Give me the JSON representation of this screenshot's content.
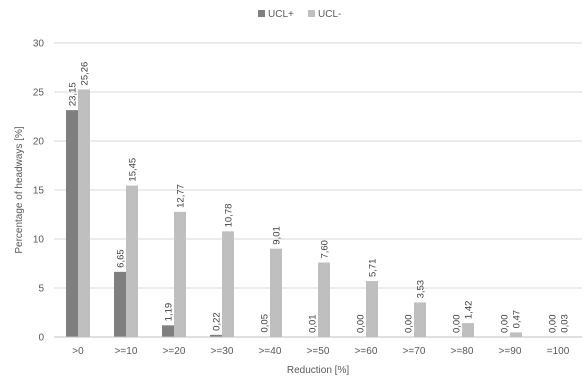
{
  "chart_data": {
    "type": "bar",
    "title": "",
    "xlabel": "Reduction [%]",
    "ylabel": "Percentage of headways [%]",
    "ylim": [
      0,
      30
    ],
    "yticks": [
      0,
      5,
      10,
      15,
      20,
      25,
      30
    ],
    "grid": "horizontal",
    "legend_position": "top-center",
    "categories": [
      ">0",
      ">=10",
      ">=20",
      ">=30",
      ">=40",
      ">=50",
      ">=60",
      ">=70",
      ">=80",
      ">=90",
      "=100"
    ],
    "series": [
      {
        "name": "UCL+",
        "color": "#7f7f7f",
        "values": [
          23.15,
          6.65,
          1.19,
          0.22,
          0.05,
          0.01,
          0.0,
          0.0,
          0.0,
          0.0,
          0.0
        ],
        "labels": [
          "23,15",
          "6,65",
          "1,19",
          "0,22",
          "0,05",
          "0,01",
          "0,00",
          "0,00",
          "0,00",
          "0,00",
          "0,00"
        ]
      },
      {
        "name": "UCL-",
        "color": "#bfbfbf",
        "values": [
          25.26,
          15.45,
          12.77,
          10.78,
          9.01,
          7.6,
          5.71,
          3.53,
          1.42,
          0.47,
          0.03
        ],
        "labels": [
          "25,26",
          "15,45",
          "12,77",
          "10,78",
          "9,01",
          "7,60",
          "5,71",
          "3,53",
          "1,42",
          "0,47",
          "0,03"
        ]
      }
    ]
  }
}
